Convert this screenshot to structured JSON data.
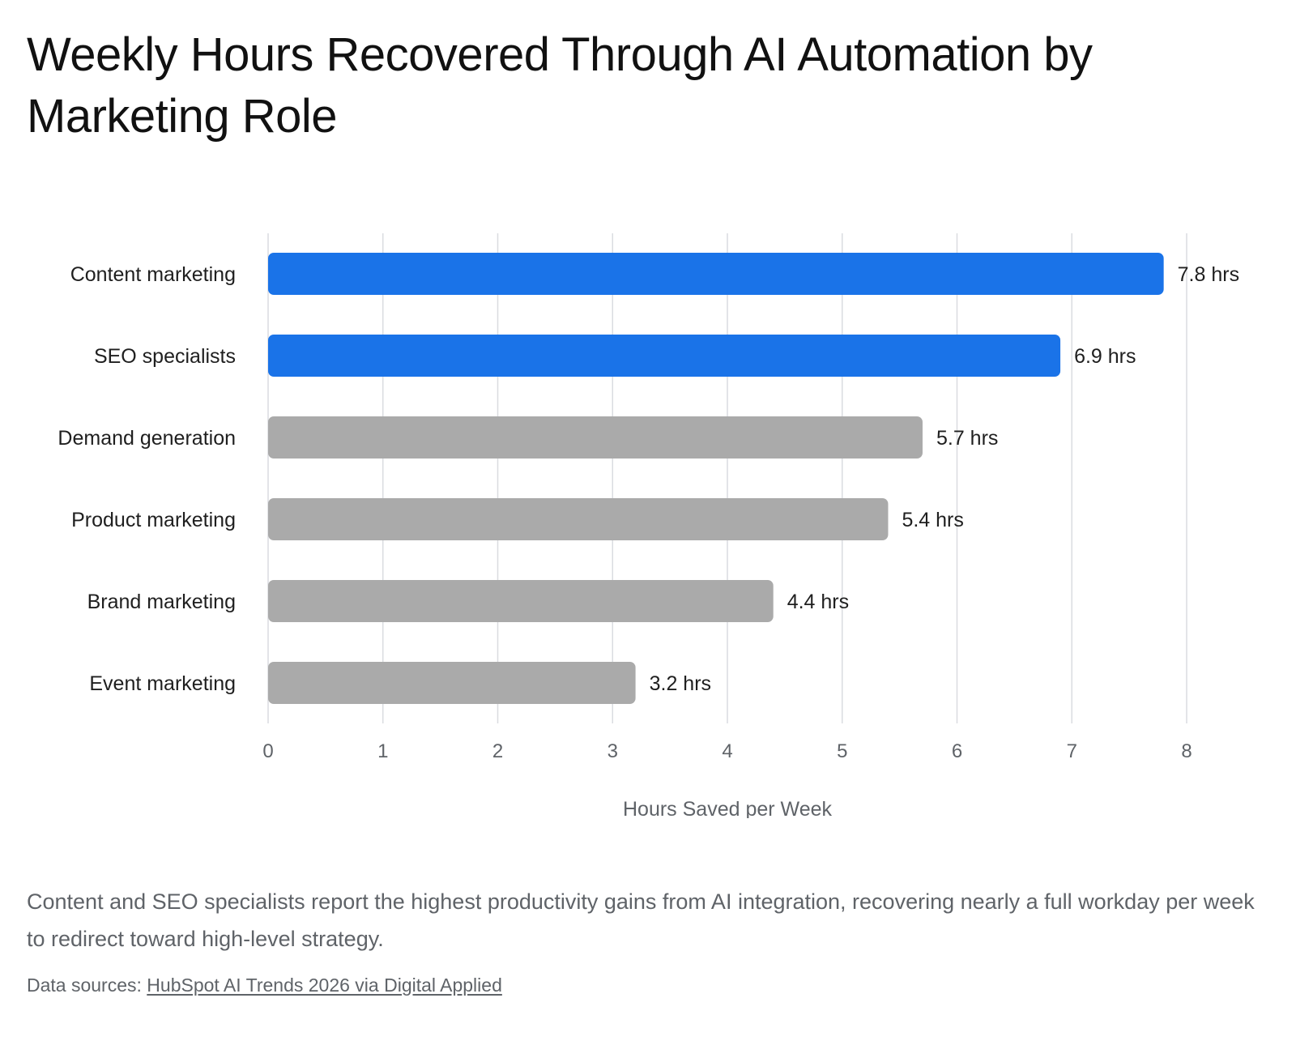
{
  "page": {
    "title": "Weekly Hours Recovered Through AI Automation by Marketing Role",
    "caption": "Content and SEO specialists report the highest productivity gains from AI integration, recovering nearly a full workday per week to redirect toward high-level strategy.",
    "sources_label": "Data sources:",
    "sources_link": "HubSpot AI Trends 2026 via Digital Applied"
  },
  "chart_data": {
    "type": "bar",
    "orientation": "horizontal",
    "title": "Weekly Hours Recovered Through AI Automation by Marketing Role",
    "xlabel": "Hours Saved per Week",
    "ylabel": "",
    "categories": [
      "Content marketing",
      "SEO specialists",
      "Demand generation",
      "Product marketing",
      "Brand marketing",
      "Event marketing"
    ],
    "values": [
      7.8,
      6.9,
      5.7,
      5.4,
      4.4,
      3.2
    ],
    "value_labels": [
      "7.8 hrs",
      "6.9 hrs",
      "5.7 hrs",
      "5.4 hrs",
      "4.4 hrs",
      "3.2 hrs"
    ],
    "highlighted": [
      true,
      true,
      false,
      false,
      false,
      false
    ],
    "xlim": [
      0,
      8
    ],
    "xticks": [
      0,
      1,
      2,
      3,
      4,
      5,
      6,
      7,
      8
    ],
    "grid": true,
    "legend": "none",
    "colors": {
      "highlight": "#1a73e8",
      "default": "#aaaaaa",
      "grid": "#dadce0",
      "tick_text": "#5f6368",
      "label_text": "#1f1f1f"
    }
  }
}
